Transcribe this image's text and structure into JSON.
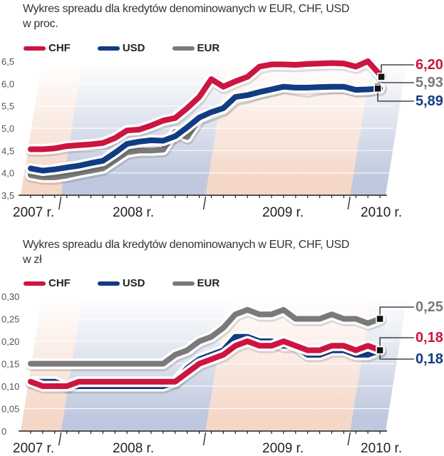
{
  "colors": {
    "CHF": "#cc1540",
    "USD": "#123c82",
    "EUR": "#7a7a7a",
    "band_pink": "#f2c9b6",
    "band_blue": "#a9b6d3",
    "axis": "#222222"
  },
  "chart_data": [
    {
      "type": "line",
      "title": "Wykres spreadu dla kredytów denominowanych w EUR, CHF, USD",
      "subtitle": "w proc.",
      "xlabel": "",
      "ylabel": "",
      "ylim": [
        3.5,
        6.5
      ],
      "yticks": [
        3.5,
        4.0,
        4.5,
        5.0,
        5.5,
        6.0,
        6.5
      ],
      "ytick_labels": [
        "3,5",
        "4,0",
        "4,5",
        "5,0",
        "5,5",
        "6,0",
        "6,5"
      ],
      "year_labels": [
        "2007 r.",
        "2008 r.",
        "2009 r.",
        "2010 r."
      ],
      "legend": [
        "CHF",
        "USD",
        "EUR"
      ],
      "legend_position": "top-left",
      "grid": true,
      "x": [
        "2007-10",
        "2007-11",
        "2007-12",
        "2008-01",
        "2008-02",
        "2008-03",
        "2008-04",
        "2008-05",
        "2008-06",
        "2008-07",
        "2008-08",
        "2008-09",
        "2008-10",
        "2008-11",
        "2008-12",
        "2009-01",
        "2009-02",
        "2009-03",
        "2009-04",
        "2009-05",
        "2009-06",
        "2009-07",
        "2009-08",
        "2009-09",
        "2009-10",
        "2009-11",
        "2009-12",
        "2010-01",
        "2010-02",
        "2010-03"
      ],
      "series": [
        {
          "name": "CHF",
          "values": [
            4.53,
            4.53,
            4.55,
            4.6,
            4.62,
            4.64,
            4.67,
            4.78,
            4.95,
            4.97,
            5.06,
            5.17,
            5.23,
            5.45,
            5.7,
            6.1,
            5.93,
            6.05,
            6.15,
            6.38,
            6.43,
            6.43,
            6.42,
            6.44,
            6.45,
            6.46,
            6.45,
            6.38,
            6.5,
            6.2
          ],
          "end_label": "6,20"
        },
        {
          "name": "USD",
          "values": [
            4.1,
            4.05,
            4.08,
            4.12,
            4.16,
            4.22,
            4.27,
            4.45,
            4.65,
            4.7,
            4.73,
            4.72,
            4.82,
            5.02,
            5.24,
            5.36,
            5.45,
            5.7,
            5.74,
            5.81,
            5.87,
            5.93,
            5.91,
            5.91,
            5.92,
            5.93,
            5.93,
            5.86,
            5.87,
            5.89
          ],
          "end_label": "5,89"
        },
        {
          "name": "EUR",
          "values": [
            3.95,
            3.9,
            3.9,
            3.94,
            4.0,
            4.05,
            4.1,
            4.28,
            4.46,
            4.5,
            4.5,
            4.52,
            4.92,
            4.8,
            5.22,
            5.32,
            5.42,
            5.66,
            5.72,
            5.8,
            5.86,
            5.93,
            5.88,
            5.85,
            5.9,
            5.92,
            5.92,
            5.85,
            5.86,
            5.93
          ],
          "end_label": "5,93"
        }
      ]
    },
    {
      "type": "line",
      "title": "Wykres spreadu dla kredytów denominowanych w EUR, CHF, USD",
      "subtitle": "w zł",
      "xlabel": "",
      "ylabel": "",
      "ylim": [
        0,
        0.3
      ],
      "yticks": [
        0,
        0.05,
        0.1,
        0.15,
        0.2,
        0.25,
        0.3
      ],
      "ytick_labels": [
        "0",
        "0,05",
        "0,10",
        "0,15",
        "0,20",
        "0,25",
        "0,30"
      ],
      "year_labels": [
        "2007 r.",
        "2008 r.",
        "2009 r.",
        "2010 r."
      ],
      "legend": [
        "CHF",
        "USD",
        "EUR"
      ],
      "legend_position": "top-left",
      "grid": true,
      "x": [
        "2007-10",
        "2007-11",
        "2007-12",
        "2008-01",
        "2008-02",
        "2008-03",
        "2008-04",
        "2008-05",
        "2008-06",
        "2008-07",
        "2008-08",
        "2008-09",
        "2008-10",
        "2008-11",
        "2008-12",
        "2009-01",
        "2009-02",
        "2009-03",
        "2009-04",
        "2009-05",
        "2009-06",
        "2009-07",
        "2009-08",
        "2009-09",
        "2009-10",
        "2009-11",
        "2009-12",
        "2010-01",
        "2010-02",
        "2010-03"
      ],
      "series": [
        {
          "name": "CHF",
          "values": [
            0.11,
            0.1,
            0.1,
            0.1,
            0.11,
            0.11,
            0.11,
            0.11,
            0.11,
            0.11,
            0.11,
            0.11,
            0.11,
            0.13,
            0.15,
            0.16,
            0.17,
            0.19,
            0.2,
            0.19,
            0.19,
            0.2,
            0.19,
            0.18,
            0.18,
            0.19,
            0.19,
            0.18,
            0.19,
            0.18
          ],
          "end_label": "0,18"
        },
        {
          "name": "USD",
          "values": [
            0.11,
            0.11,
            0.11,
            0.1,
            0.1,
            0.1,
            0.1,
            0.1,
            0.1,
            0.1,
            0.1,
            0.1,
            0.11,
            0.14,
            0.16,
            0.17,
            0.18,
            0.21,
            0.21,
            0.2,
            0.2,
            0.19,
            0.19,
            0.17,
            0.17,
            0.18,
            0.18,
            0.17,
            0.17,
            0.18
          ],
          "end_label": "0,18"
        },
        {
          "name": "EUR",
          "values": [
            0.15,
            0.15,
            0.15,
            0.15,
            0.15,
            0.15,
            0.15,
            0.15,
            0.15,
            0.15,
            0.15,
            0.15,
            0.17,
            0.18,
            0.2,
            0.21,
            0.23,
            0.26,
            0.27,
            0.26,
            0.26,
            0.27,
            0.25,
            0.25,
            0.25,
            0.26,
            0.25,
            0.25,
            0.24,
            0.25
          ],
          "end_label": "0,25"
        }
      ]
    }
  ]
}
